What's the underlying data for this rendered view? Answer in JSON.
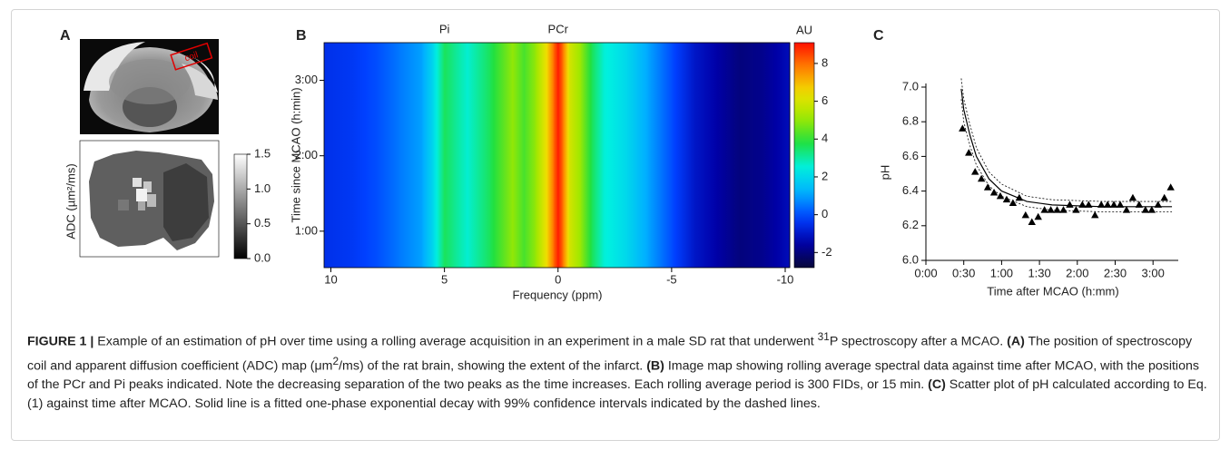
{
  "panel_a": {
    "panel_label": "A",
    "coil_label": "coil",
    "axis_label": "ADC (µm²/ms)",
    "colorbar": {
      "clim": [
        0,
        1.5
      ],
      "ticks": [
        1.5,
        {
          "value": 1,
          "label": "1.0"
        },
        0.5,
        {
          "value": 0,
          "label": "0.0"
        }
      ]
    }
  },
  "chart_data": [
    {
      "type": "heatmap",
      "panel_label": "B",
      "xlabel": "Frequency (ppm)",
      "ylabel": "Time since MCAO (h:min)",
      "xlim": [
        10.3,
        -10.2
      ],
      "xticks": [
        10,
        5,
        0,
        -5,
        -10
      ],
      "ylim": [
        31,
        210
      ],
      "yticks": [
        {
          "value": 60,
          "label": "1:00"
        },
        {
          "value": 120,
          "label": "2:00"
        },
        {
          "value": 180,
          "label": "3:00"
        }
      ],
      "annotations": [
        {
          "text": "Pi",
          "x": 5
        },
        {
          "text": "PCr",
          "x": 0
        }
      ],
      "colormap": [
        "#08083a",
        "#0000a8",
        "#0040ff",
        "#00b0ff",
        "#00f0e0",
        "#20e040",
        "#a0e800",
        "#f0e000",
        "#ff8000",
        "#ff1000"
      ],
      "colorbar": {
        "title": "AU",
        "clim": [
          -2.8,
          9.1
        ],
        "ticks": [
          -2,
          0,
          2,
          4,
          6,
          8
        ]
      },
      "profile": {
        "x": [
          10.3,
          9,
          8,
          7,
          6,
          5.5,
          5,
          4.6,
          4,
          3,
          2,
          1.5,
          1,
          0.5,
          0.2,
          0,
          -0.2,
          -0.5,
          -1,
          -1.5,
          -2,
          -3,
          -4,
          -5,
          -6,
          -7,
          -8,
          -9,
          -10.2
        ],
        "values": [
          -0.5,
          -0.3,
          0,
          0.5,
          1,
          2,
          3.6,
          3.2,
          2.6,
          3.6,
          5,
          4.2,
          5,
          6.5,
          8,
          9,
          8,
          6,
          5,
          3.6,
          2.6,
          2,
          1,
          0,
          -1,
          -1.5,
          -2,
          -1.8,
          -1.2
        ]
      }
    },
    {
      "type": "scatter",
      "panel_label": "C",
      "xlabel": "Time after MCAO (h:mm)",
      "ylabel": "pH",
      "color": "#000000",
      "xlim": [
        0,
        200
      ],
      "xticks": [
        {
          "value": 0,
          "label": "0:00"
        },
        {
          "value": 30,
          "label": "0:30"
        },
        {
          "value": 60,
          "label": "1:00"
        },
        {
          "value": 90,
          "label": "1:30"
        },
        {
          "value": 120,
          "label": "2:00"
        },
        {
          "value": 150,
          "label": "2:30"
        },
        {
          "value": 180,
          "label": "3:00"
        }
      ],
      "ylim": [
        6,
        7
      ],
      "yticks": [
        {
          "value": 6,
          "label": "6.0"
        },
        6.2,
        6.4,
        6.6,
        6.8,
        {
          "value": 7,
          "label": "7.0"
        }
      ],
      "x": [
        29,
        34,
        39,
        44,
        49,
        54,
        59,
        64,
        69,
        74,
        79,
        84,
        89,
        94,
        99,
        104,
        109,
        114,
        119,
        124,
        129,
        134,
        139,
        144,
        149,
        154,
        159,
        164,
        169,
        174,
        179,
        184,
        189,
        194
      ],
      "values": [
        6.76,
        6.62,
        6.51,
        6.47,
        6.42,
        6.39,
        6.37,
        6.35,
        6.33,
        6.36,
        6.26,
        6.22,
        6.25,
        6.29,
        6.29,
        6.29,
        6.29,
        6.32,
        6.29,
        6.32,
        6.32,
        6.26,
        6.32,
        6.32,
        6.32,
        6.32,
        6.29,
        6.36,
        6.32,
        6.29,
        6.29,
        6.32,
        6.36,
        6.42
      ],
      "fit": {
        "x": [
          28,
          30,
          35,
          40,
          50,
          60,
          80,
          100,
          140,
          195
        ],
        "values": [
          6.99,
          6.87,
          6.72,
          6.6,
          6.47,
          6.4,
          6.34,
          6.32,
          6.31,
          6.31
        ],
        "lower": [
          6.93,
          6.8,
          6.66,
          6.55,
          6.43,
          6.37,
          6.31,
          6.29,
          6.28,
          6.28
        ],
        "upper": [
          7.05,
          6.93,
          6.78,
          6.65,
          6.51,
          6.44,
          6.37,
          6.35,
          6.34,
          6.34
        ]
      }
    }
  ],
  "caption": [
    "FIGURE 1 |",
    " Example of an estimation of pH over time using a rolling average acquisition in an experiment in a male SD rat that underwent ",
    "31",
    "P spectroscopy after a MCAO. ",
    "(A)",
    " The position of spectroscopy coil and apparent diffusion coefficient (ADC) map (μm",
    "2",
    "/ms) of the rat brain, showing the extent of the infarct. ",
    "(B)",
    " Image map showing rolling average spectral data against time after MCAO, with the positions of the PCr and Pi peaks indicated. Note the decreasing separation of the two peaks as the time increases. Each rolling average period is 300 FIDs, or 15 min. ",
    "(C)",
    " Scatter plot of pH calculated according to Eq. (1) against time after MCAO. Solid line is a fitted one-phase exponential decay with 99% confidence intervals indicated by the dashed lines."
  ]
}
